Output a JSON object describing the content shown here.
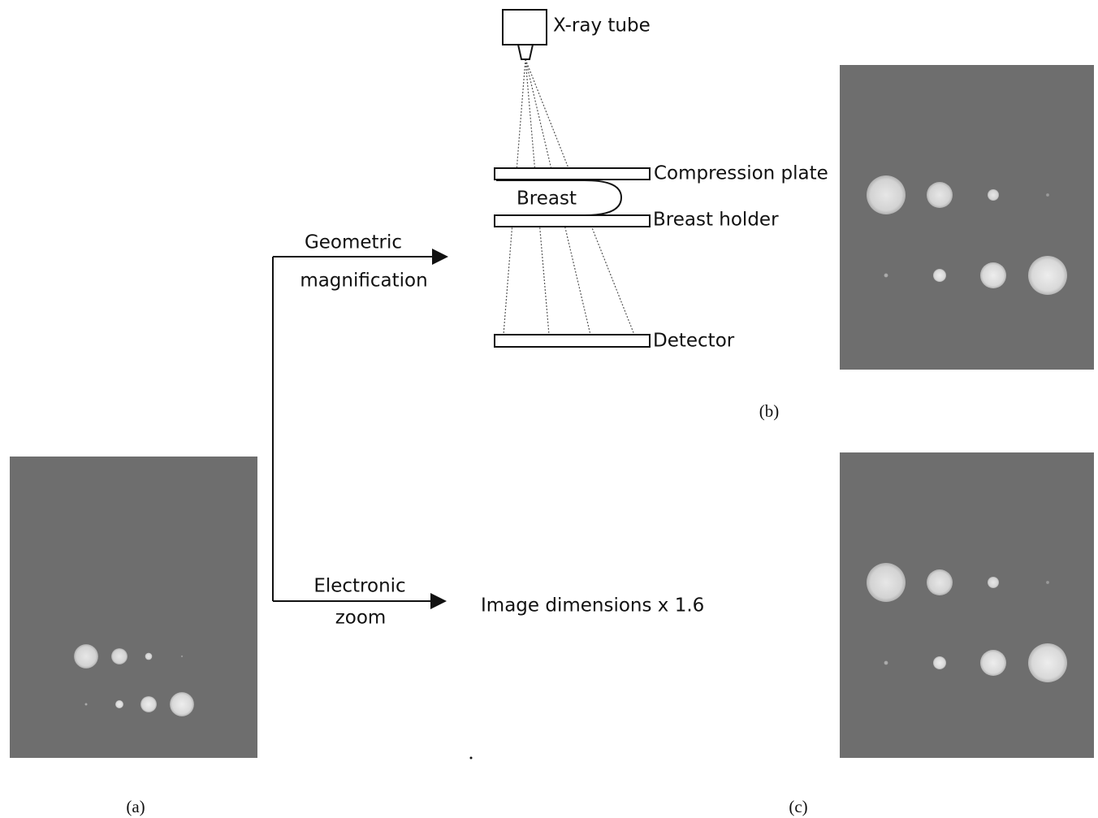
{
  "setup": {
    "tube": "X-ray tube",
    "compression_plate": "Compression plate",
    "breast": "Breast",
    "breast_holder": "Breast holder",
    "detector": "Detector"
  },
  "arrows": [
    {
      "lines": [
        "Geometric",
        "magnification"
      ]
    },
    {
      "lines": [
        "Electronic",
        "zoom"
      ]
    }
  ],
  "zoom_note": "Image dimensions x 1.6",
  "panels": [
    {
      "label": "(a)"
    },
    {
      "label": "(b)"
    },
    {
      "label": "(c)"
    }
  ]
}
